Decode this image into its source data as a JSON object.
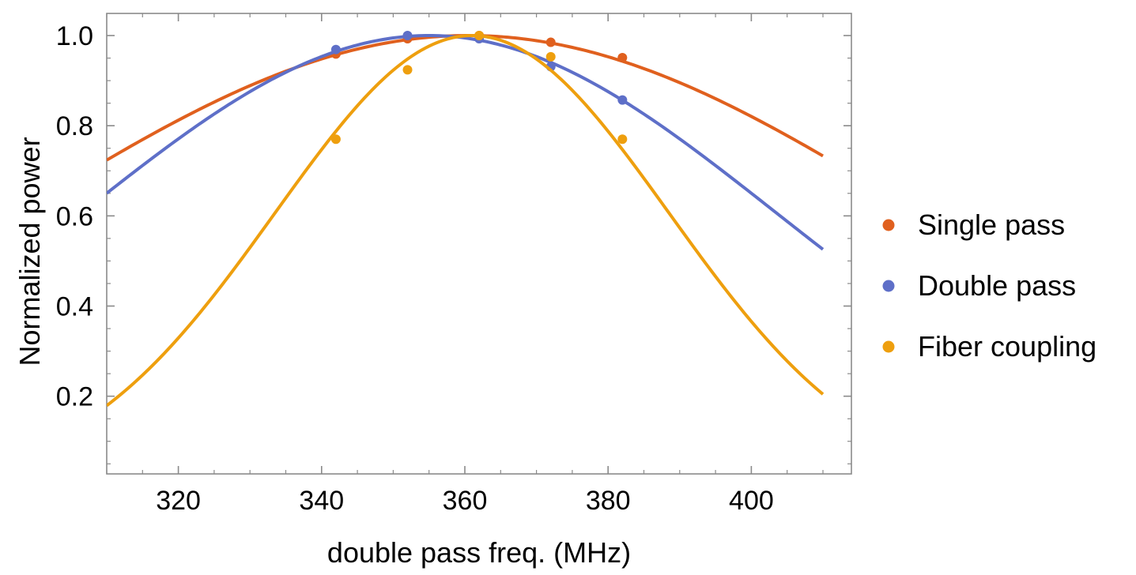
{
  "chart_data": {
    "type": "scatter",
    "title": "",
    "xlabel": "double pass freq. (MHz)",
    "ylabel": "Normalized power",
    "xlim": [
      310,
      415
    ],
    "ylim": [
      0.025,
      1.03
    ],
    "xticks": [
      320,
      340,
      360,
      380,
      400
    ],
    "yticks": [
      0.2,
      0.4,
      0.6,
      0.8,
      1.0
    ],
    "xtick_labels": [
      "320",
      "340",
      "360",
      "380",
      "400"
    ],
    "ytick_labels": [
      "0.2",
      "0.4",
      "0.6",
      "0.8",
      "1.0"
    ],
    "xminor": [
      310,
      315,
      325,
      330,
      335,
      345,
      350,
      355,
      365,
      370,
      375,
      385,
      390,
      395,
      405,
      410
    ],
    "yminor": [
      0.05,
      0.1,
      0.15,
      0.25,
      0.3,
      0.35,
      0.45,
      0.5,
      0.55,
      0.65,
      0.7,
      0.75,
      0.85,
      0.9,
      0.95
    ],
    "grid": false,
    "legend_position": "right",
    "series": [
      {
        "name": "Single pass",
        "color": "#E0601E",
        "points": [
          [
            342,
            0.959
          ],
          [
            352,
            0.993
          ],
          [
            362,
            1.0
          ],
          [
            372,
            0.985
          ],
          [
            382,
            0.951
          ]
        ],
        "fit": {
          "center": 360.5,
          "sigma": 62.8,
          "amplitude": 1.0,
          "x_range": [
            310,
            410
          ]
        }
      },
      {
        "name": "Double pass",
        "color": "#5E6FC8",
        "points": [
          [
            342,
            0.969
          ],
          [
            352,
            1.0
          ],
          [
            362,
            0.993
          ],
          [
            372,
            0.931
          ],
          [
            382,
            0.857
          ]
        ],
        "fit": {
          "center": 355.0,
          "sigma": 48.5,
          "amplitude": 1.0,
          "x_range": [
            310,
            410
          ]
        }
      },
      {
        "name": "Fiber coupling",
        "color": "#EE9F0E",
        "points": [
          [
            342,
            0.77
          ],
          [
            352,
            0.924
          ],
          [
            362,
            1.0
          ],
          [
            372,
            0.953
          ],
          [
            382,
            0.77
          ]
        ],
        "fit": {
          "center": 361.0,
          "sigma": 27.5,
          "amplitude": 1.0,
          "x_range": [
            310,
            410
          ]
        }
      }
    ]
  }
}
